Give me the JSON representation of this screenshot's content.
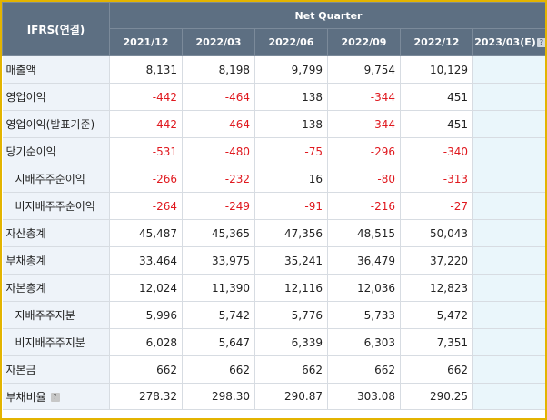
{
  "table": {
    "corner_label": "IFRS(연결)",
    "group_label": "Net Quarter",
    "periods": [
      "2021/12",
      "2022/03",
      "2022/06",
      "2022/09",
      "2022/12",
      "2023/03(E)"
    ],
    "help_icon": "question-icon",
    "rows": [
      {
        "label": "매출액",
        "indent": false,
        "values": [
          "8,131",
          "8,198",
          "9,799",
          "9,754",
          "10,129",
          ""
        ]
      },
      {
        "label": "영업이익",
        "indent": false,
        "values": [
          "-442",
          "-464",
          "138",
          "-344",
          "451",
          ""
        ]
      },
      {
        "label": "영업이익(발표기준)",
        "indent": false,
        "values": [
          "-442",
          "-464",
          "138",
          "-344",
          "451",
          ""
        ]
      },
      {
        "label": "당기순이익",
        "indent": false,
        "values": [
          "-531",
          "-480",
          "-75",
          "-296",
          "-340",
          ""
        ]
      },
      {
        "label": "지배주주순이익",
        "indent": true,
        "values": [
          "-266",
          "-232",
          "16",
          "-80",
          "-313",
          ""
        ]
      },
      {
        "label": "비지배주주순이익",
        "indent": true,
        "values": [
          "-264",
          "-249",
          "-91",
          "-216",
          "-27",
          ""
        ]
      },
      {
        "label": "자산총계",
        "indent": false,
        "values": [
          "45,487",
          "45,365",
          "47,356",
          "48,515",
          "50,043",
          ""
        ]
      },
      {
        "label": "부채총계",
        "indent": false,
        "values": [
          "33,464",
          "33,975",
          "35,241",
          "36,479",
          "37,220",
          ""
        ]
      },
      {
        "label": "자본총계",
        "indent": false,
        "values": [
          "12,024",
          "11,390",
          "12,116",
          "12,036",
          "12,823",
          ""
        ]
      },
      {
        "label": "지배주주지분",
        "indent": true,
        "values": [
          "5,996",
          "5,742",
          "5,776",
          "5,733",
          "5,472",
          ""
        ]
      },
      {
        "label": "비지배주주지분",
        "indent": true,
        "values": [
          "6,028",
          "5,647",
          "6,339",
          "6,303",
          "7,351",
          ""
        ]
      },
      {
        "label": "자본금",
        "indent": false,
        "values": [
          "662",
          "662",
          "662",
          "662",
          "662",
          ""
        ]
      },
      {
        "label": "부채비율",
        "indent": false,
        "help": true,
        "values": [
          "278.32",
          "298.30",
          "290.87",
          "303.08",
          "290.25",
          ""
        ]
      }
    ]
  },
  "colors": {
    "header_bg": "#5d6f82",
    "label_bg": "#eef3f9",
    "estimate_bg": "#eaf6fb",
    "negative": "#e0191f",
    "frame": "#e3b400"
  }
}
